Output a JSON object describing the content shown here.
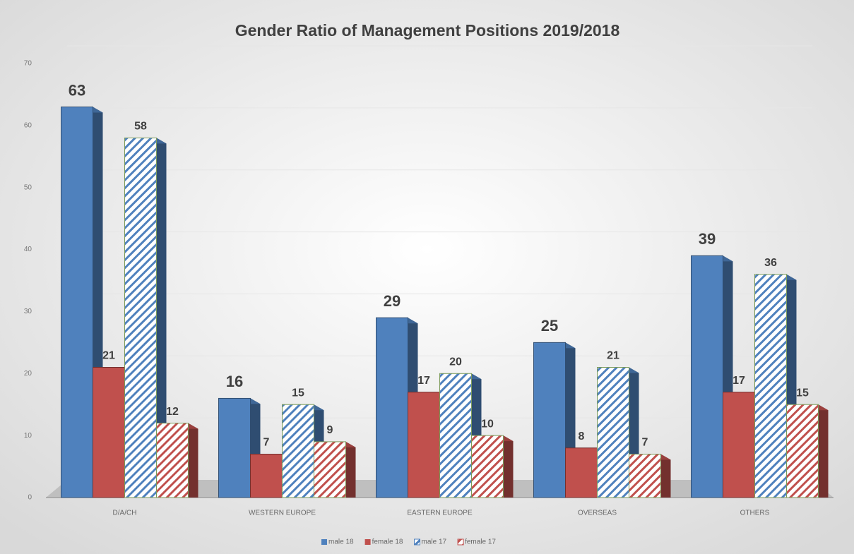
{
  "chart_data": {
    "type": "bar",
    "title": "Gender Ratio of Management Positions 2019/2018",
    "categories": [
      "D/A/CH",
      "WESTERN EUROPE",
      "EASTERN EUROPE",
      "OVERSEAS",
      "OTHERS"
    ],
    "series": [
      {
        "name": "male 18",
        "color": "#4f81bd",
        "values": [
          63,
          16,
          29,
          25,
          39
        ]
      },
      {
        "name": "female 18",
        "color": "#c0504d",
        "values": [
          21,
          7,
          17,
          8,
          17
        ]
      },
      {
        "name": "male 17",
        "color": "#4f81bd",
        "hatch": true,
        "values": [
          58,
          15,
          20,
          21,
          36
        ]
      },
      {
        "name": "female 17",
        "color": "#c0504d",
        "hatch": true,
        "values": [
          12,
          9,
          10,
          7,
          15
        ]
      }
    ],
    "ylim": [
      0,
      70
    ],
    "yticks": [
      0,
      10,
      20,
      30,
      40,
      50,
      60,
      70
    ],
    "grid": true,
    "legend": "bottom"
  }
}
